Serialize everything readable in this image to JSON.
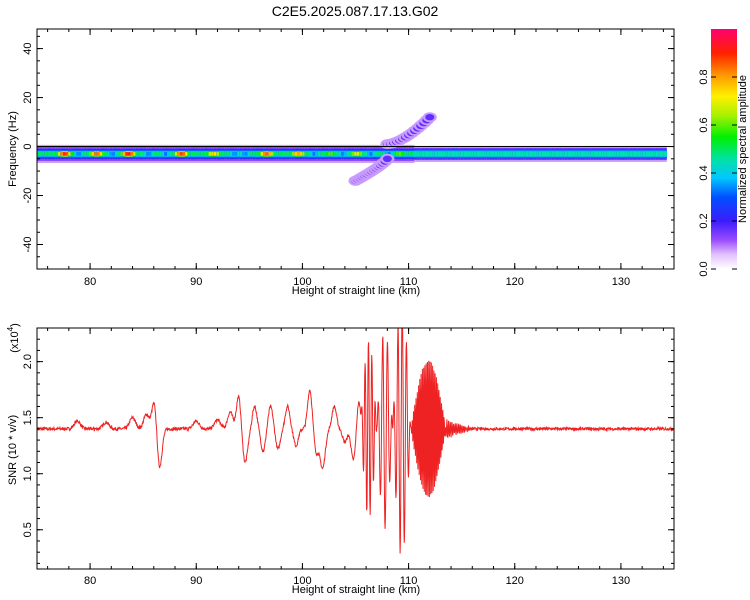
{
  "title": "C2E5.2025.087.17.13.G02",
  "chart_data": [
    {
      "type": "heatmap",
      "xlabel": "Height of straight line (km)",
      "ylabel": "Frequency (Hz)",
      "xlim": [
        75,
        135
      ],
      "ylim": [
        -50,
        48
      ],
      "xticks": [
        80,
        90,
        100,
        110,
        120,
        130
      ],
      "yticks": [
        40,
        20,
        0,
        -20,
        -40
      ],
      "colorbar": {
        "label": "Normalized spectral amplitude",
        "range": [
          0,
          1
        ],
        "ticks": [
          0.0,
          0.2,
          0.4,
          0.6,
          0.8
        ],
        "tick_labels": [
          "0.0",
          "0.2",
          "0.4",
          "0.6",
          "0.8"
        ]
      },
      "main_band": {
        "freq_center_hz": -3,
        "peaks_below_110km": [
          {
            "x": 77.5,
            "amp": 0.9
          },
          {
            "x": 80.5,
            "amp": 0.85
          },
          {
            "x": 83.5,
            "amp": 0.92
          },
          {
            "x": 88.5,
            "amp": 0.88
          },
          {
            "x": 91.5,
            "amp": 0.75
          },
          {
            "x": 96.5,
            "amp": 0.85
          },
          {
            "x": 99.5,
            "amp": 0.8
          },
          {
            "x": 102.5,
            "amp": 0.6
          },
          {
            "x": 105,
            "amp": 0.7
          },
          {
            "x": 107,
            "amp": 0.5
          },
          {
            "x": 109,
            "amp": 0.6
          }
        ],
        "amp_above_110km": 0.45
      },
      "dispersed_features": [
        {
          "x_range_km": [
            108,
            112
          ],
          "freq_range_hz": [
            1,
            12
          ]
        },
        {
          "x_range_km": [
            105,
            108
          ],
          "freq_range_hz": [
            -14,
            -5
          ]
        }
      ]
    },
    {
      "type": "line",
      "xlabel": "Height of straight line (km)",
      "ylabel": "SNR (10 * v/v)",
      "y_multiplier": "(x10",
      "y_multiplier_exp": "4",
      "y_multiplier_close": ")",
      "xlim": [
        75,
        135
      ],
      "ylim": [
        0.15,
        2.3
      ],
      "xticks": [
        80,
        90,
        100,
        110,
        120,
        130
      ],
      "yticks": [
        0.5,
        1.0,
        1.5,
        2.0
      ],
      "ytick_labels": [
        "0.5",
        "1.0",
        "1.5",
        "2.0"
      ],
      "color": "#ee2222",
      "baseline": 1.4,
      "events": [
        {
          "x": 78.8,
          "dy": 0.07,
          "w": 0.4
        },
        {
          "x": 81.5,
          "dy": 0.06,
          "w": 0.4
        },
        {
          "x": 84.0,
          "dy": 0.1,
          "w": 0.4
        },
        {
          "x": 85.3,
          "dy": 0.13,
          "w": 0.35
        },
        {
          "x": 86.1,
          "dy": 0.3,
          "w": 0.35
        },
        {
          "x": 86.5,
          "dy": -0.4,
          "w": 0.35
        },
        {
          "x": 90.0,
          "dy": 0.07,
          "w": 0.4
        },
        {
          "x": 92.0,
          "dy": 0.08,
          "w": 0.4
        },
        {
          "x": 93.2,
          "dy": 0.15,
          "w": 0.35
        },
        {
          "x": 94.0,
          "dy": 0.3,
          "w": 0.3
        },
        {
          "x": 94.6,
          "dy": -0.3,
          "w": 0.35
        },
        {
          "x": 95.5,
          "dy": 0.2,
          "w": 0.3
        },
        {
          "x": 96.3,
          "dy": -0.2,
          "w": 0.3
        },
        {
          "x": 97.0,
          "dy": 0.2,
          "w": 0.3
        },
        {
          "x": 97.7,
          "dy": -0.18,
          "w": 0.3
        },
        {
          "x": 98.6,
          "dy": 0.2,
          "w": 0.3
        },
        {
          "x": 99.4,
          "dy": -0.15,
          "w": 0.3
        },
        {
          "x": 100.7,
          "dy": 0.35,
          "w": 0.3
        },
        {
          "x": 101.3,
          "dy": -0.2,
          "w": 0.3
        },
        {
          "x": 101.9,
          "dy": -0.35,
          "w": 0.35
        },
        {
          "x": 103.0,
          "dy": 0.2,
          "w": 0.3
        },
        {
          "x": 104.0,
          "dy": -0.12,
          "w": 0.3
        },
        {
          "x": 104.8,
          "dy": -0.28,
          "w": 0.3
        },
        {
          "x": 105.3,
          "dy": 0.25,
          "w": 0.25
        }
      ],
      "burst": [
        {
          "x_start": 105.5,
          "x_end": 107.0,
          "amp": 0.8,
          "period": 0.32
        },
        {
          "x_start": 107.0,
          "x_end": 108.5,
          "amp": 0.9,
          "period": 0.45
        },
        {
          "x_start": 108.5,
          "x_end": 110.2,
          "amp": 1.15,
          "period": 0.4
        },
        {
          "x_start": 110.2,
          "x_end": 113.5,
          "amp": 0.7,
          "period": 0.12
        }
      ]
    }
  ]
}
